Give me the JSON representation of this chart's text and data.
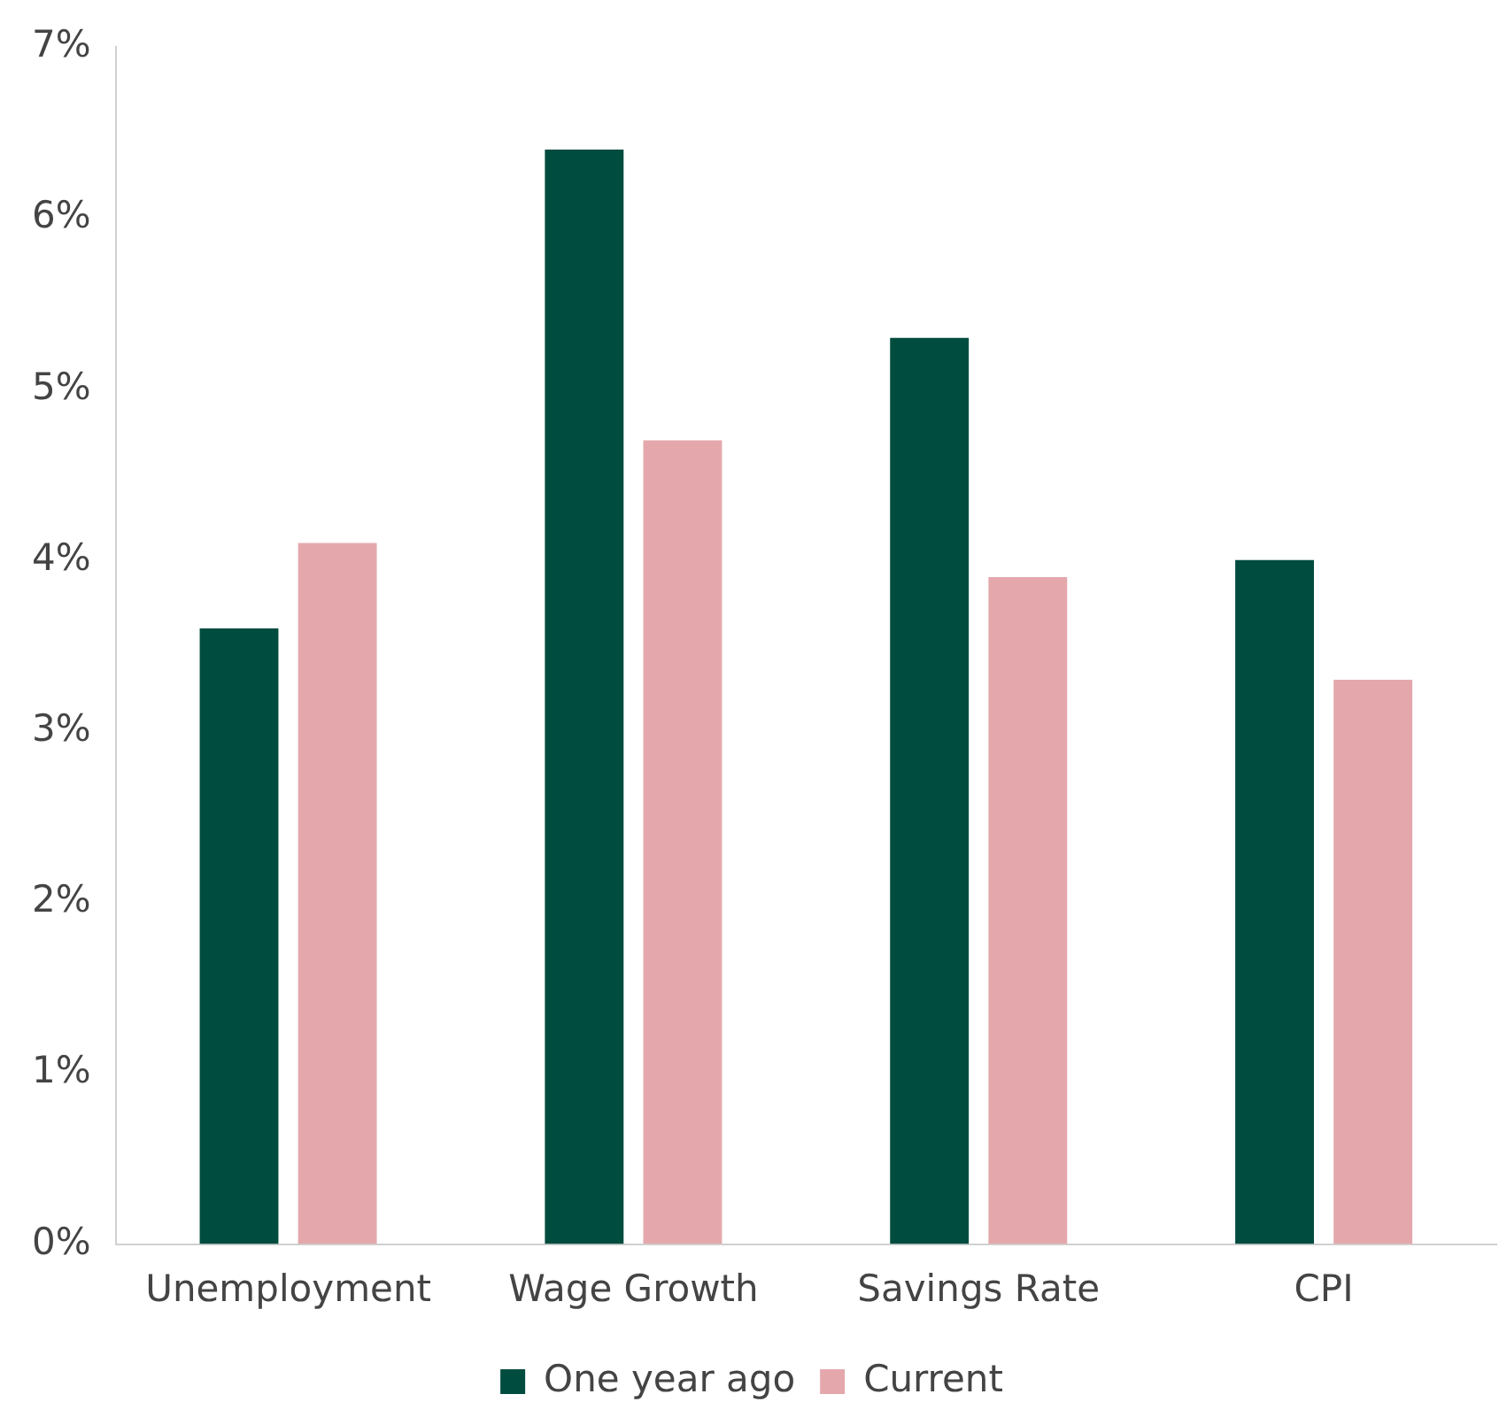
{
  "chart_data": {
    "type": "bar",
    "categories": [
      "Unemployment",
      "Wage Growth",
      "Savings Rate",
      "CPI"
    ],
    "series": [
      {
        "name": "One year ago",
        "color": "#004c3f",
        "values": [
          3.6,
          6.4,
          5.3,
          4.0
        ]
      },
      {
        "name": "Current",
        "color": "#e4a8ac",
        "values": [
          4.1,
          4.7,
          3.9,
          3.3
        ]
      }
    ],
    "ylim": [
      0,
      7
    ],
    "yticks": [
      {
        "value": 0,
        "label": "0%"
      },
      {
        "value": 1,
        "label": "1%"
      },
      {
        "value": 2,
        "label": "2%"
      },
      {
        "value": 3,
        "label": "3%"
      },
      {
        "value": 4,
        "label": "4%"
      },
      {
        "value": 5,
        "label": "5%"
      },
      {
        "value": 6,
        "label": "6%"
      },
      {
        "value": 7,
        "label": "7%"
      }
    ],
    "grid": false,
    "legend": "bottom"
  }
}
